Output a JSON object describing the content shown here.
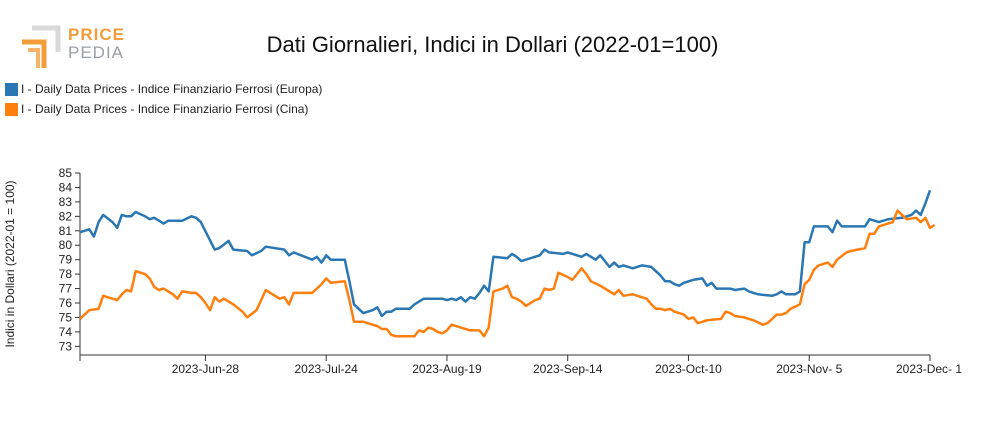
{
  "logo": {
    "line1": "PRICE",
    "line2": "PEDIA"
  },
  "chart_data": {
    "type": "line",
    "title": "Dati Giornalieri, Indici in Dollari (2022-01=100)",
    "xlabel": "",
    "ylabel": "Indici in Dollari (2022-01 = 100)",
    "ylim": [
      72.4,
      85.0
    ],
    "yticks": [
      73,
      74,
      75,
      76,
      77,
      78,
      79,
      80,
      81,
      82,
      83,
      84,
      85
    ],
    "x_range": [
      "2023-06-01",
      "2023-12-01"
    ],
    "xticks": [
      {
        "date": "2023-06-28",
        "label": "2023-Jun-28"
      },
      {
        "date": "2023-07-24",
        "label": "2023-Jul-24"
      },
      {
        "date": "2023-08-19",
        "label": "2023-Aug-19"
      },
      {
        "date": "2023-09-14",
        "label": "2023-Sep-14"
      },
      {
        "date": "2023-10-10",
        "label": "2023-Oct-10"
      },
      {
        "date": "2023-11-05",
        "label": "2023-Nov- 5"
      },
      {
        "date": "2023-12-01",
        "label": "2023-Dec- 1"
      }
    ],
    "legend_position": "top-left",
    "grid": false,
    "series": [
      {
        "name": "I - Daily Data Prices - Indice Finanziario Ferrosi (Europa)",
        "color": "#2a77b3",
        "points": [
          [
            "2023-06-01",
            80.9
          ],
          [
            "2023-06-02",
            81.0
          ],
          [
            "2023-06-03",
            81.1
          ],
          [
            "2023-06-04",
            80.6
          ],
          [
            "2023-06-05",
            81.6
          ],
          [
            "2023-06-06",
            82.1
          ],
          [
            "2023-06-08",
            81.6
          ],
          [
            "2023-06-09",
            81.2
          ],
          [
            "2023-06-10",
            82.1
          ],
          [
            "2023-06-11",
            82.0
          ],
          [
            "2023-06-12",
            82.0
          ],
          [
            "2023-06-13",
            82.3
          ],
          [
            "2023-06-15",
            82.0
          ],
          [
            "2023-06-16",
            81.8
          ],
          [
            "2023-06-17",
            81.9
          ],
          [
            "2023-06-19",
            81.5
          ],
          [
            "2023-06-20",
            81.7
          ],
          [
            "2023-06-23",
            81.7
          ],
          [
            "2023-06-25",
            82.0
          ],
          [
            "2023-06-26",
            81.9
          ],
          [
            "2023-06-27",
            81.6
          ],
          [
            "2023-06-30",
            79.7
          ],
          [
            "2023-07-01",
            79.8
          ],
          [
            "2023-07-03",
            80.3
          ],
          [
            "2023-07-04",
            79.7
          ],
          [
            "2023-07-07",
            79.6
          ],
          [
            "2023-07-08",
            79.3
          ],
          [
            "2023-07-10",
            79.6
          ],
          [
            "2023-07-11",
            79.9
          ],
          [
            "2023-07-15",
            79.7
          ],
          [
            "2023-07-16",
            79.3
          ],
          [
            "2023-07-17",
            79.5
          ],
          [
            "2023-07-21",
            79.0
          ],
          [
            "2023-07-22",
            79.2
          ],
          [
            "2023-07-23",
            78.8
          ],
          [
            "2023-07-24",
            79.3
          ],
          [
            "2023-07-25",
            79.0
          ],
          [
            "2023-07-28",
            79.0
          ],
          [
            "2023-07-29",
            77.5
          ],
          [
            "2023-07-30",
            75.9
          ],
          [
            "2023-07-31",
            75.6
          ],
          [
            "2023-08-01",
            75.3
          ],
          [
            "2023-08-03",
            75.5
          ],
          [
            "2023-08-04",
            75.7
          ],
          [
            "2023-08-05",
            75.1
          ],
          [
            "2023-08-06",
            75.4
          ],
          [
            "2023-08-07",
            75.4
          ],
          [
            "2023-08-08",
            75.6
          ],
          [
            "2023-08-11",
            75.6
          ],
          [
            "2023-08-12",
            75.9
          ],
          [
            "2023-08-14",
            76.3
          ],
          [
            "2023-08-18",
            76.3
          ],
          [
            "2023-08-19",
            76.2
          ],
          [
            "2023-08-20",
            76.3
          ],
          [
            "2023-08-21",
            76.2
          ],
          [
            "2023-08-22",
            76.4
          ],
          [
            "2023-08-23",
            76.1
          ],
          [
            "2023-08-24",
            76.4
          ],
          [
            "2023-08-25",
            76.3
          ],
          [
            "2023-08-26",
            76.7
          ],
          [
            "2023-08-27",
            77.2
          ],
          [
            "2023-08-28",
            76.8
          ],
          [
            "2023-08-29",
            79.2
          ],
          [
            "2023-09-01",
            79.1
          ],
          [
            "2023-09-02",
            79.4
          ],
          [
            "2023-09-03",
            79.2
          ],
          [
            "2023-09-04",
            78.9
          ],
          [
            "2023-09-08",
            79.3
          ],
          [
            "2023-09-09",
            79.7
          ],
          [
            "2023-09-10",
            79.5
          ],
          [
            "2023-09-13",
            79.4
          ],
          [
            "2023-09-14",
            79.5
          ],
          [
            "2023-09-17",
            79.2
          ],
          [
            "2023-09-18",
            79.4
          ],
          [
            "2023-09-20",
            79.0
          ],
          [
            "2023-09-21",
            79.3
          ],
          [
            "2023-09-22",
            78.9
          ],
          [
            "2023-09-23",
            78.5
          ],
          [
            "2023-09-24",
            78.8
          ],
          [
            "2023-09-25",
            78.5
          ],
          [
            "2023-09-26",
            78.6
          ],
          [
            "2023-09-28",
            78.4
          ],
          [
            "2023-09-30",
            78.6
          ],
          [
            "2023-10-02",
            78.5
          ],
          [
            "2023-10-04",
            77.9
          ],
          [
            "2023-10-05",
            77.5
          ],
          [
            "2023-10-06",
            77.5
          ],
          [
            "2023-10-07",
            77.3
          ],
          [
            "2023-10-08",
            77.2
          ],
          [
            "2023-10-09",
            77.4
          ],
          [
            "2023-10-11",
            77.6
          ],
          [
            "2023-10-13",
            77.7
          ],
          [
            "2023-10-14",
            77.2
          ],
          [
            "2023-10-15",
            77.4
          ],
          [
            "2023-10-16",
            77.0
          ],
          [
            "2023-10-19",
            77.0
          ],
          [
            "2023-10-20",
            76.9
          ],
          [
            "2023-10-22",
            77.0
          ],
          [
            "2023-10-23",
            76.8
          ],
          [
            "2023-10-25",
            76.6
          ],
          [
            "2023-10-28",
            76.5
          ],
          [
            "2023-10-29",
            76.6
          ],
          [
            "2023-10-30",
            76.8
          ],
          [
            "2023-10-31",
            76.6
          ],
          [
            "2023-11-02",
            76.6
          ],
          [
            "2023-11-03",
            76.8
          ],
          [
            "2023-11-04",
            80.2
          ],
          [
            "2023-11-05",
            80.2
          ],
          [
            "2023-11-06",
            81.3
          ],
          [
            "2023-11-09",
            81.3
          ],
          [
            "2023-11-10",
            80.9
          ],
          [
            "2023-11-11",
            81.7
          ],
          [
            "2023-11-12",
            81.3
          ],
          [
            "2023-11-17",
            81.3
          ],
          [
            "2023-11-18",
            81.8
          ],
          [
            "2023-11-20",
            81.6
          ],
          [
            "2023-11-22",
            81.8
          ],
          [
            "2023-11-25",
            81.9
          ],
          [
            "2023-11-27",
            82.1
          ],
          [
            "2023-11-28",
            82.4
          ],
          [
            "2023-11-29",
            82.1
          ],
          [
            "2023-11-30",
            82.9
          ],
          [
            "2023-12-01",
            83.8
          ]
        ]
      },
      {
        "name": "I - Daily Data Prices - Indice Finanziario Ferrosi (Cina)",
        "color": "#ff7f0e",
        "points": [
          [
            "2023-06-01",
            74.9
          ],
          [
            "2023-06-02",
            75.2
          ],
          [
            "2023-06-03",
            75.5
          ],
          [
            "2023-06-05",
            75.6
          ],
          [
            "2023-06-06",
            76.5
          ],
          [
            "2023-06-08",
            76.3
          ],
          [
            "2023-06-09",
            76.2
          ],
          [
            "2023-06-10",
            76.6
          ],
          [
            "2023-06-11",
            76.9
          ],
          [
            "2023-06-12",
            76.8
          ],
          [
            "2023-06-13",
            78.2
          ],
          [
            "2023-06-15",
            78.0
          ],
          [
            "2023-06-16",
            77.7
          ],
          [
            "2023-06-17",
            77.1
          ],
          [
            "2023-06-18",
            76.9
          ],
          [
            "2023-06-19",
            77.0
          ],
          [
            "2023-06-21",
            76.6
          ],
          [
            "2023-06-22",
            76.3
          ],
          [
            "2023-06-23",
            76.8
          ],
          [
            "2023-06-25",
            76.7
          ],
          [
            "2023-06-26",
            76.7
          ],
          [
            "2023-06-27",
            76.4
          ],
          [
            "2023-06-28",
            76.0
          ],
          [
            "2023-06-29",
            75.5
          ],
          [
            "2023-06-30",
            76.4
          ],
          [
            "2023-07-01",
            76.1
          ],
          [
            "2023-07-02",
            76.3
          ],
          [
            "2023-07-04",
            75.9
          ],
          [
            "2023-07-06",
            75.4
          ],
          [
            "2023-07-07",
            75.0
          ],
          [
            "2023-07-09",
            75.5
          ],
          [
            "2023-07-11",
            76.9
          ],
          [
            "2023-07-12",
            76.7
          ],
          [
            "2023-07-14",
            76.3
          ],
          [
            "2023-07-15",
            76.4
          ],
          [
            "2023-07-16",
            75.9
          ],
          [
            "2023-07-17",
            76.7
          ],
          [
            "2023-07-21",
            76.7
          ],
          [
            "2023-07-22",
            77.0
          ],
          [
            "2023-07-23",
            77.3
          ],
          [
            "2023-07-24",
            77.7
          ],
          [
            "2023-07-25",
            77.4
          ],
          [
            "2023-07-28",
            77.5
          ],
          [
            "2023-07-29",
            76.2
          ],
          [
            "2023-07-30",
            74.7
          ],
          [
            "2023-08-01",
            74.7
          ],
          [
            "2023-08-03",
            74.5
          ],
          [
            "2023-08-04",
            74.4
          ],
          [
            "2023-08-05",
            74.2
          ],
          [
            "2023-08-06",
            74.2
          ],
          [
            "2023-08-07",
            73.8
          ],
          [
            "2023-08-08",
            73.7
          ],
          [
            "2023-08-10",
            73.7
          ],
          [
            "2023-08-12",
            73.7
          ],
          [
            "2023-08-13",
            74.1
          ],
          [
            "2023-08-14",
            74.0
          ],
          [
            "2023-08-15",
            74.3
          ],
          [
            "2023-08-16",
            74.2
          ],
          [
            "2023-08-17",
            74.0
          ],
          [
            "2023-08-18",
            73.9
          ],
          [
            "2023-08-19",
            74.1
          ],
          [
            "2023-08-20",
            74.5
          ],
          [
            "2023-08-22",
            74.3
          ],
          [
            "2023-08-24",
            74.1
          ],
          [
            "2023-08-26",
            74.1
          ],
          [
            "2023-08-27",
            73.7
          ],
          [
            "2023-08-28",
            74.3
          ],
          [
            "2023-08-29",
            76.8
          ],
          [
            "2023-08-31",
            77.0
          ],
          [
            "2023-09-01",
            77.2
          ],
          [
            "2023-09-02",
            76.4
          ],
          [
            "2023-09-03",
            76.3
          ],
          [
            "2023-09-04",
            76.1
          ],
          [
            "2023-09-05",
            75.8
          ],
          [
            "2023-09-07",
            76.2
          ],
          [
            "2023-09-08",
            76.3
          ],
          [
            "2023-09-09",
            77.0
          ],
          [
            "2023-09-10",
            76.9
          ],
          [
            "2023-09-11",
            77.0
          ],
          [
            "2023-09-12",
            78.1
          ],
          [
            "2023-09-14",
            77.8
          ],
          [
            "2023-09-15",
            77.6
          ],
          [
            "2023-09-17",
            78.4
          ],
          [
            "2023-09-18",
            78.0
          ],
          [
            "2023-09-19",
            77.5
          ],
          [
            "2023-09-21",
            77.2
          ],
          [
            "2023-09-22",
            77.0
          ],
          [
            "2023-09-24",
            76.6
          ],
          [
            "2023-09-25",
            76.9
          ],
          [
            "2023-09-26",
            76.5
          ],
          [
            "2023-09-28",
            76.6
          ],
          [
            "2023-09-29",
            76.5
          ],
          [
            "2023-10-01",
            76.3
          ],
          [
            "2023-10-02",
            75.9
          ],
          [
            "2023-10-03",
            75.6
          ],
          [
            "2023-10-04",
            75.6
          ],
          [
            "2023-10-05",
            75.5
          ],
          [
            "2023-10-06",
            75.6
          ],
          [
            "2023-10-07",
            75.4
          ],
          [
            "2023-10-08",
            75.3
          ],
          [
            "2023-10-09",
            75.2
          ],
          [
            "2023-10-10",
            74.9
          ],
          [
            "2023-10-11",
            75.0
          ],
          [
            "2023-10-12",
            74.6
          ],
          [
            "2023-10-13",
            74.7
          ],
          [
            "2023-10-14",
            74.8
          ],
          [
            "2023-10-17",
            74.9
          ],
          [
            "2023-10-18",
            75.4
          ],
          [
            "2023-10-19",
            75.3
          ],
          [
            "2023-10-20",
            75.1
          ],
          [
            "2023-10-22",
            75.0
          ],
          [
            "2023-10-24",
            74.8
          ],
          [
            "2023-10-26",
            74.5
          ],
          [
            "2023-10-27",
            74.6
          ],
          [
            "2023-10-28",
            74.9
          ],
          [
            "2023-10-29",
            75.2
          ],
          [
            "2023-10-30",
            75.2
          ],
          [
            "2023-10-31",
            75.3
          ],
          [
            "2023-11-01",
            75.6
          ],
          [
            "2023-11-03",
            75.9
          ],
          [
            "2023-11-04",
            77.3
          ],
          [
            "2023-11-05",
            77.6
          ],
          [
            "2023-11-06",
            78.3
          ],
          [
            "2023-11-07",
            78.6
          ],
          [
            "2023-11-09",
            78.8
          ],
          [
            "2023-11-10",
            78.5
          ],
          [
            "2023-11-11",
            79.0
          ],
          [
            "2023-11-13",
            79.5
          ],
          [
            "2023-11-14",
            79.6
          ],
          [
            "2023-11-17",
            79.8
          ],
          [
            "2023-11-18",
            80.8
          ],
          [
            "2023-11-19",
            80.8
          ],
          [
            "2023-11-20",
            81.3
          ],
          [
            "2023-11-23",
            81.6
          ],
          [
            "2023-11-24",
            82.4
          ],
          [
            "2023-11-25",
            82.1
          ],
          [
            "2023-11-26",
            81.8
          ],
          [
            "2023-11-28",
            81.9
          ],
          [
            "2023-11-29",
            81.6
          ],
          [
            "2023-11-30",
            81.9
          ],
          [
            "2023-12-01",
            81.2
          ],
          [
            "2023-12-02",
            81.4
          ]
        ]
      }
    ]
  }
}
